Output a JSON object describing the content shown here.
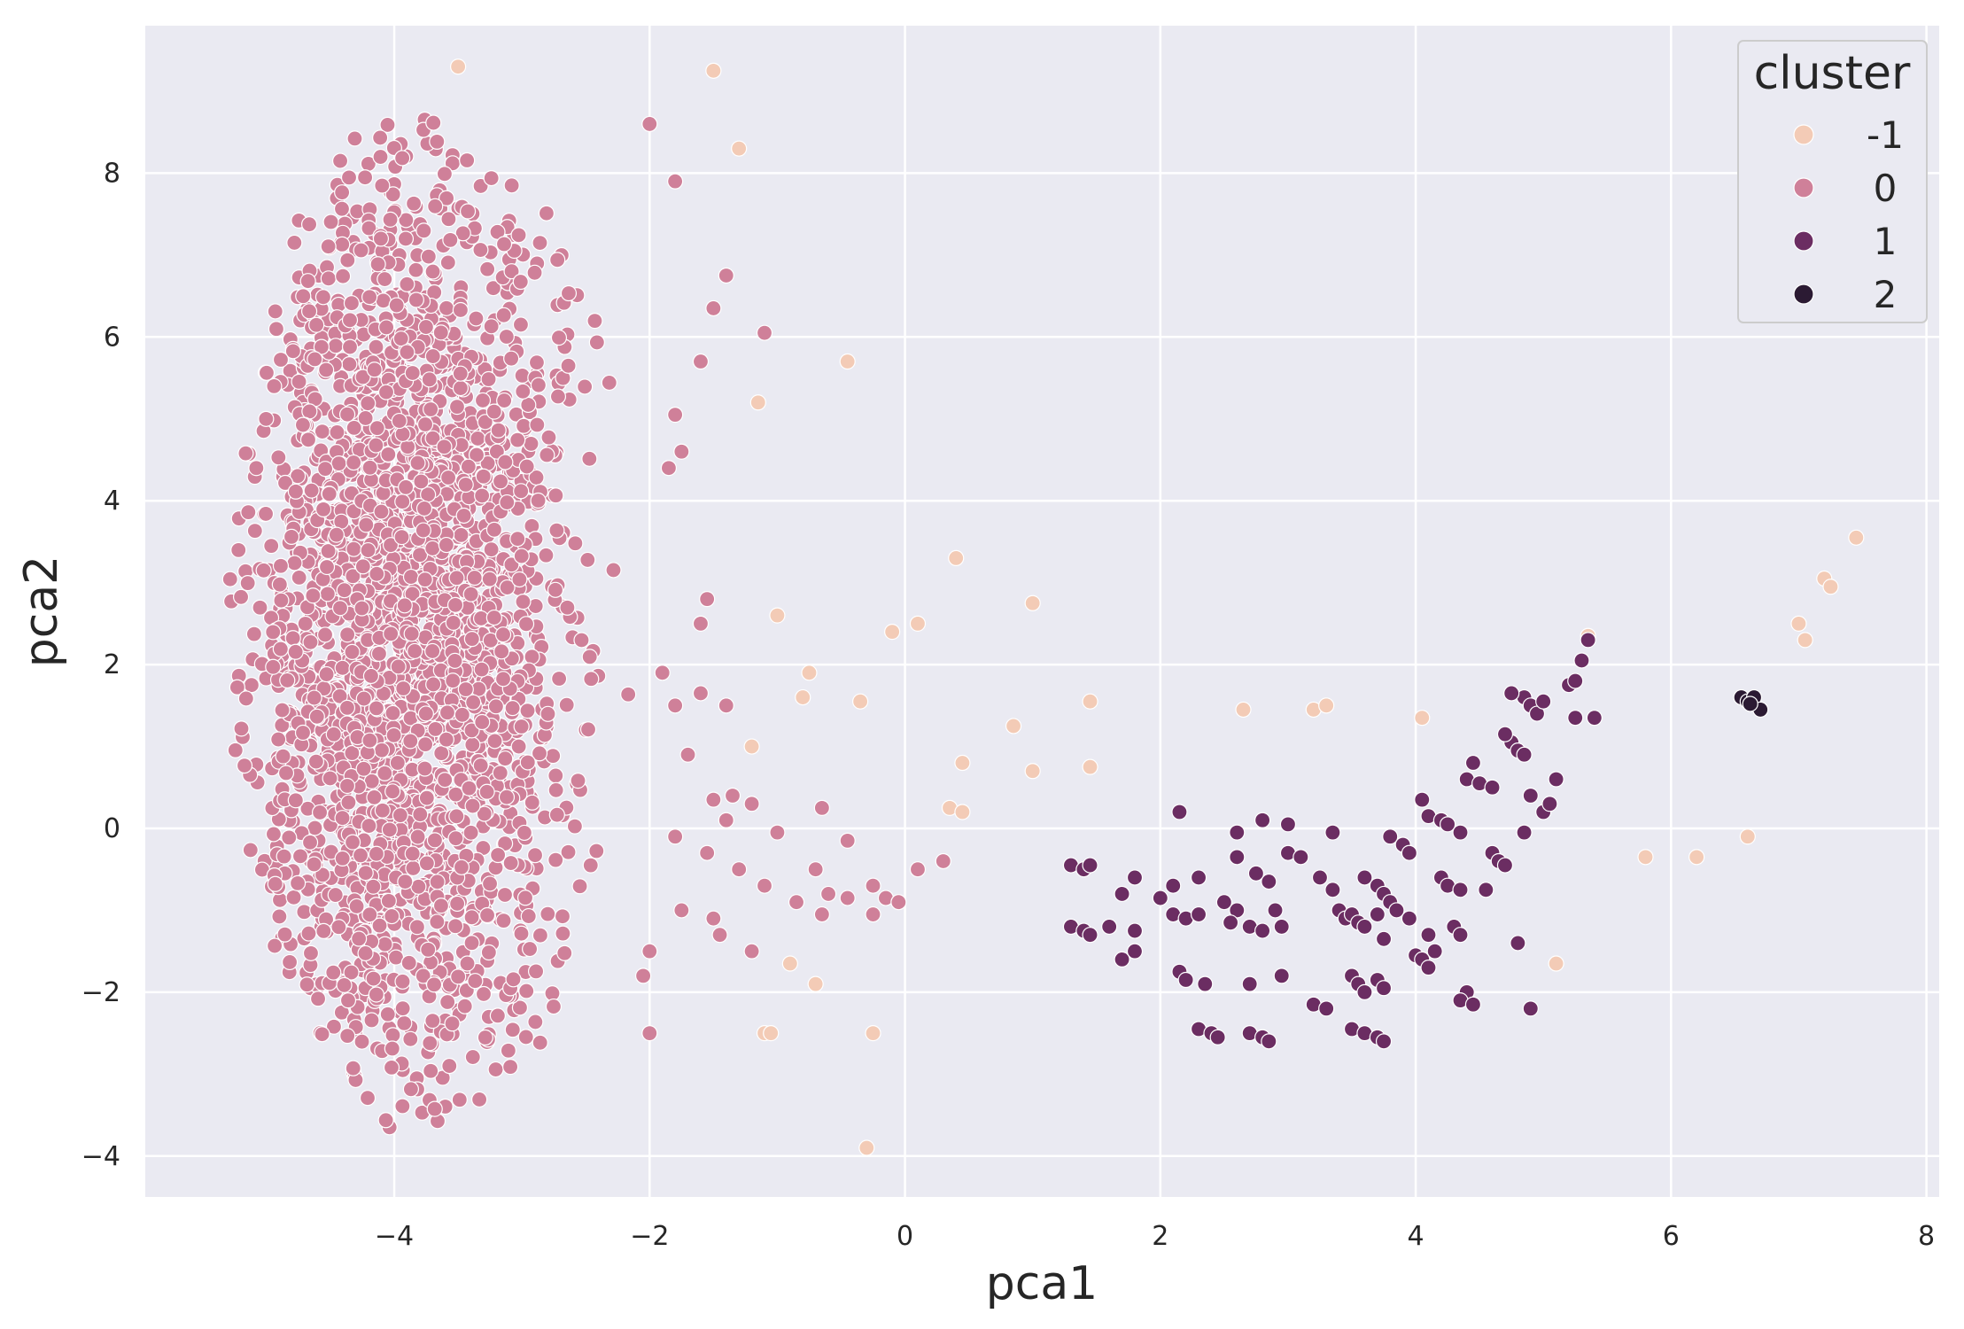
{
  "chart_data": {
    "type": "scatter",
    "xlabel": "pca1",
    "ylabel": "pca2",
    "xlim": [
      -5.95,
      8.1
    ],
    "ylim": [
      -4.5,
      9.8
    ],
    "xticks": [
      -4,
      -2,
      0,
      2,
      4,
      6,
      8
    ],
    "xtick_labels": [
      "−4",
      "−2",
      "0",
      "2",
      "4",
      "6",
      "8"
    ],
    "yticks": [
      -4,
      -2,
      0,
      2,
      4,
      6,
      8
    ],
    "ytick_labels": [
      "−4",
      "−2",
      "0",
      "2",
      "4",
      "6",
      "8"
    ],
    "grid": true,
    "legend": {
      "title": "cluster",
      "placement": "top-right",
      "entries": [
        {
          "label": "-1",
          "color": "#f3cbb6"
        },
        {
          "label": "0",
          "color": "#cf8099"
        },
        {
          "label": "1",
          "color": "#6b2d62"
        },
        {
          "label": "2",
          "color": "#2b1a33"
        }
      ]
    },
    "colors": {
      "background": "#eaeaf2",
      "grid": "#ffffff",
      "marker_edge": "#ffffff"
    },
    "series": [
      {
        "name": "-1",
        "color": "#f3cbb6",
        "points": [
          [
            -3.5,
            9.3
          ],
          [
            -1.5,
            9.25
          ],
          [
            -1.3,
            8.3
          ],
          [
            -1.15,
            5.2
          ],
          [
            -0.45,
            5.7
          ],
          [
            0.4,
            3.3
          ],
          [
            1.0,
            2.75
          ],
          [
            0.1,
            2.5
          ],
          [
            -0.1,
            2.4
          ],
          [
            -1.0,
            2.6
          ],
          [
            -0.75,
            1.9
          ],
          [
            -0.8,
            1.6
          ],
          [
            -0.35,
            1.55
          ],
          [
            -1.2,
            1.0
          ],
          [
            0.85,
            1.25
          ],
          [
            0.45,
            0.8
          ],
          [
            1.0,
            0.7
          ],
          [
            1.45,
            0.75
          ],
          [
            1.45,
            1.55
          ],
          [
            0.35,
            0.25
          ],
          [
            0.45,
            0.2
          ],
          [
            2.65,
            1.45
          ],
          [
            3.2,
            1.45
          ],
          [
            3.3,
            1.5
          ],
          [
            4.05,
            1.35
          ],
          [
            5.35,
            2.35
          ],
          [
            5.8,
            -0.35
          ],
          [
            6.2,
            -0.35
          ],
          [
            6.6,
            -0.1
          ],
          [
            7.0,
            2.5
          ],
          [
            7.05,
            2.3
          ],
          [
            7.2,
            3.05
          ],
          [
            7.25,
            2.95
          ],
          [
            7.45,
            3.55
          ],
          [
            5.1,
            -1.65
          ],
          [
            -0.9,
            -1.65
          ],
          [
            -0.7,
            -1.9
          ],
          [
            -1.1,
            -2.5
          ],
          [
            -1.05,
            -2.5
          ],
          [
            -0.25,
            -2.5
          ],
          [
            -0.3,
            -3.9
          ]
        ]
      },
      {
        "name": "0",
        "color": "#cf8099",
        "cloud": {
          "center_x": -3.9,
          "x_min": -5.3,
          "x_max": -2.0,
          "y_min": -3.7,
          "y_max": 8.7,
          "count": 2600
        },
        "points": [
          [
            -2.0,
            8.6
          ],
          [
            -1.8,
            7.9
          ],
          [
            -1.4,
            6.75
          ],
          [
            -1.5,
            6.35
          ],
          [
            -1.1,
            6.05
          ],
          [
            -1.6,
            5.7
          ],
          [
            -1.8,
            5.05
          ],
          [
            -1.75,
            4.6
          ],
          [
            -1.85,
            4.4
          ],
          [
            -1.55,
            2.8
          ],
          [
            -1.6,
            2.5
          ],
          [
            -1.9,
            1.9
          ],
          [
            -1.6,
            1.65
          ],
          [
            -1.4,
            1.5
          ],
          [
            -1.8,
            1.5
          ],
          [
            -1.7,
            0.9
          ],
          [
            -1.35,
            0.4
          ],
          [
            -1.2,
            0.3
          ],
          [
            -1.5,
            0.35
          ],
          [
            -1.4,
            0.1
          ],
          [
            -1.0,
            -0.05
          ],
          [
            -1.8,
            -0.1
          ],
          [
            -1.55,
            -0.3
          ],
          [
            -1.3,
            -0.5
          ],
          [
            -0.65,
            0.25
          ],
          [
            -0.45,
            -0.15
          ],
          [
            -1.1,
            -0.7
          ],
          [
            -0.85,
            -0.9
          ],
          [
            -0.7,
            -0.5
          ],
          [
            -0.6,
            -0.8
          ],
          [
            -0.45,
            -0.85
          ],
          [
            -0.25,
            -0.7
          ],
          [
            -0.15,
            -0.85
          ],
          [
            -0.05,
            -0.9
          ],
          [
            0.1,
            -0.5
          ],
          [
            0.3,
            -0.4
          ],
          [
            -1.75,
            -1.0
          ],
          [
            -1.5,
            -1.1
          ],
          [
            -1.45,
            -1.3
          ],
          [
            -1.2,
            -1.5
          ],
          [
            -0.65,
            -1.05
          ],
          [
            -0.25,
            -1.05
          ],
          [
            -2.0,
            -2.5
          ],
          [
            -2.05,
            -1.8
          ],
          [
            -2.0,
            -1.5
          ]
        ]
      },
      {
        "name": "1",
        "color": "#6b2d62",
        "points": [
          [
            1.3,
            -0.45
          ],
          [
            1.4,
            -0.5
          ],
          [
            1.45,
            -0.45
          ],
          [
            1.3,
            -1.2
          ],
          [
            1.4,
            -1.25
          ],
          [
            1.45,
            -1.3
          ],
          [
            1.6,
            -1.2
          ],
          [
            1.7,
            -1.6
          ],
          [
            1.8,
            -1.5
          ],
          [
            1.8,
            -1.25
          ],
          [
            1.7,
            -0.8
          ],
          [
            1.8,
            -0.6
          ],
          [
            2.0,
            -0.85
          ],
          [
            2.1,
            -0.7
          ],
          [
            2.15,
            0.2
          ],
          [
            2.1,
            -1.05
          ],
          [
            2.2,
            -1.1
          ],
          [
            2.3,
            -1.05
          ],
          [
            2.15,
            -1.75
          ],
          [
            2.2,
            -1.85
          ],
          [
            2.35,
            -1.9
          ],
          [
            2.3,
            -2.45
          ],
          [
            2.4,
            -2.5
          ],
          [
            2.45,
            -2.55
          ],
          [
            2.3,
            -0.6
          ],
          [
            2.5,
            -0.9
          ],
          [
            2.6,
            -1.0
          ],
          [
            2.55,
            -1.15
          ],
          [
            2.7,
            -1.2
          ],
          [
            2.8,
            -1.25
          ],
          [
            2.6,
            -0.05
          ],
          [
            2.6,
            -0.35
          ],
          [
            2.75,
            -0.55
          ],
          [
            2.85,
            -0.65
          ],
          [
            2.8,
            0.1
          ],
          [
            2.9,
            -1.0
          ],
          [
            2.95,
            -1.2
          ],
          [
            2.7,
            -1.9
          ],
          [
            2.95,
            -1.8
          ],
          [
            2.7,
            -2.5
          ],
          [
            2.8,
            -2.55
          ],
          [
            2.85,
            -2.6
          ],
          [
            3.0,
            -0.3
          ],
          [
            3.1,
            -0.35
          ],
          [
            3.0,
            0.05
          ],
          [
            3.2,
            -2.15
          ],
          [
            3.3,
            -2.2
          ],
          [
            3.25,
            -0.6
          ],
          [
            3.35,
            -0.75
          ],
          [
            3.35,
            -0.05
          ],
          [
            3.4,
            -1.0
          ],
          [
            3.45,
            -1.1
          ],
          [
            3.5,
            -1.05
          ],
          [
            3.55,
            -1.15
          ],
          [
            3.6,
            -1.2
          ],
          [
            3.5,
            -1.8
          ],
          [
            3.55,
            -1.9
          ],
          [
            3.6,
            -2.0
          ],
          [
            3.5,
            -2.45
          ],
          [
            3.6,
            -2.5
          ],
          [
            3.7,
            -2.55
          ],
          [
            3.75,
            -2.6
          ],
          [
            3.6,
            -0.6
          ],
          [
            3.7,
            -0.7
          ],
          [
            3.75,
            -0.8
          ],
          [
            3.8,
            -0.9
          ],
          [
            3.7,
            -1.05
          ],
          [
            3.75,
            -1.35
          ],
          [
            3.85,
            -1.0
          ],
          [
            3.95,
            -1.1
          ],
          [
            3.8,
            -0.1
          ],
          [
            3.9,
            -0.2
          ],
          [
            3.95,
            -0.3
          ],
          [
            3.7,
            -1.85
          ],
          [
            3.75,
            -1.95
          ],
          [
            4.0,
            -1.55
          ],
          [
            4.05,
            -1.6
          ],
          [
            4.1,
            -1.7
          ],
          [
            4.1,
            -1.3
          ],
          [
            4.05,
            0.35
          ],
          [
            4.1,
            0.15
          ],
          [
            4.2,
            0.1
          ],
          [
            4.25,
            0.05
          ],
          [
            4.35,
            -0.05
          ],
          [
            4.2,
            -0.6
          ],
          [
            4.25,
            -0.7
          ],
          [
            4.35,
            -0.75
          ],
          [
            4.3,
            -1.2
          ],
          [
            4.35,
            -1.3
          ],
          [
            4.4,
            -2.0
          ],
          [
            4.35,
            -2.1
          ],
          [
            4.45,
            -2.15
          ],
          [
            4.4,
            0.6
          ],
          [
            4.5,
            0.55
          ],
          [
            4.6,
            0.5
          ],
          [
            4.45,
            0.8
          ],
          [
            4.6,
            -0.3
          ],
          [
            4.65,
            -0.4
          ],
          [
            4.7,
            -0.45
          ],
          [
            4.55,
            -0.75
          ],
          [
            4.75,
            1.05
          ],
          [
            4.8,
            0.95
          ],
          [
            4.85,
            0.9
          ],
          [
            4.7,
            1.15
          ],
          [
            4.8,
            -1.4
          ],
          [
            4.85,
            1.6
          ],
          [
            4.9,
            1.5
          ],
          [
            4.95,
            1.4
          ],
          [
            4.75,
            1.65
          ],
          [
            5.0,
            1.55
          ],
          [
            4.9,
            0.4
          ],
          [
            5.0,
            0.2
          ],
          [
            5.05,
            0.3
          ],
          [
            5.1,
            0.6
          ],
          [
            4.85,
            -0.05
          ],
          [
            4.9,
            -2.2
          ],
          [
            5.2,
            1.75
          ],
          [
            5.25,
            1.8
          ],
          [
            5.3,
            2.05
          ],
          [
            5.35,
            2.3
          ],
          [
            5.4,
            1.35
          ],
          [
            5.25,
            1.35
          ],
          [
            4.15,
            -1.5
          ]
        ]
      },
      {
        "name": "2",
        "color": "#2b1a33",
        "points": [
          [
            6.55,
            1.6
          ],
          [
            6.6,
            1.55
          ],
          [
            6.65,
            1.6
          ],
          [
            6.7,
            1.45
          ],
          [
            6.62,
            1.52
          ]
        ]
      }
    ]
  }
}
